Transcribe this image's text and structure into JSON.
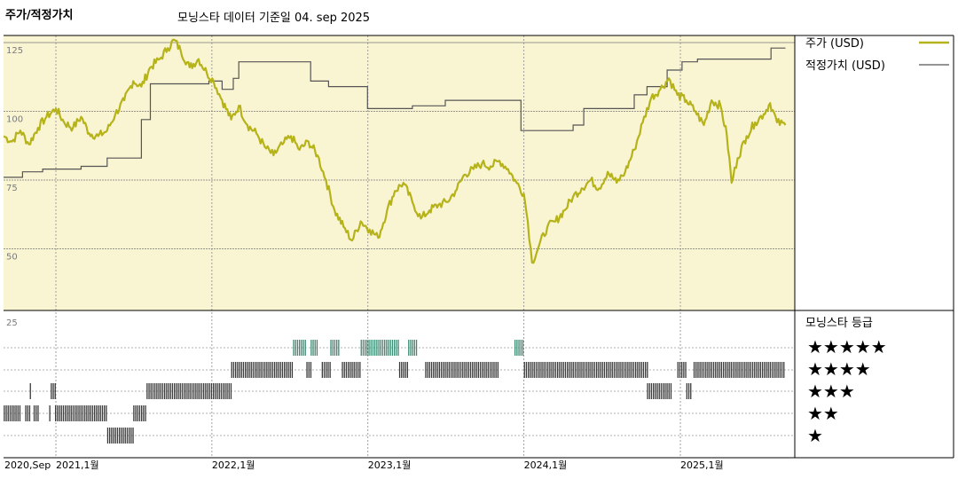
{
  "header": {
    "left_title": "주가/적정가치",
    "subtitle": "모닝스타 데이터 기준일 04. sep 2025"
  },
  "colors": {
    "price": "#b5b21a",
    "fair_value": "#555555",
    "panel_bg": "#f9f5d2",
    "rating_5": "#3d8a73",
    "rating_other": "#3a3a3a"
  },
  "chart_data": [
    {
      "type": "line",
      "title": "주가/적정가치",
      "ylim": [
        25,
        130
      ],
      "y_ticks": [
        125,
        100,
        75,
        50
      ],
      "grid": true,
      "legend_position": "right",
      "series": [
        {
          "name": "주가 (USD)",
          "points": [
            [
              "2020-09-01",
              91
            ],
            [
              "2020-09-20",
              89
            ],
            [
              "2020-10-10",
              93
            ],
            [
              "2020-10-30",
              88
            ],
            [
              "2020-11-20",
              94
            ],
            [
              "2020-12-10",
              98
            ],
            [
              "2021-01-01",
              101
            ],
            [
              "2021-01-20",
              96
            ],
            [
              "2021-02-10",
              94
            ],
            [
              "2021-03-01",
              98
            ],
            [
              "2021-03-20",
              92
            ],
            [
              "2021-04-10",
              91
            ],
            [
              "2021-05-01",
              93
            ],
            [
              "2021-05-20",
              99
            ],
            [
              "2021-06-10",
              104
            ],
            [
              "2021-07-01",
              111
            ],
            [
              "2021-07-20",
              109
            ],
            [
              "2021-08-10",
              116
            ],
            [
              "2021-09-01",
              119
            ],
            [
              "2021-09-20",
              123
            ],
            [
              "2021-10-05",
              126
            ],
            [
              "2021-10-20",
              122
            ],
            [
              "2021-11-10",
              116
            ],
            [
              "2021-12-01",
              119
            ],
            [
              "2021-12-20",
              114
            ],
            [
              "2022-01-05",
              111
            ],
            [
              "2022-01-25",
              104
            ],
            [
              "2022-02-15",
              97
            ],
            [
              "2022-03-05",
              102
            ],
            [
              "2022-03-25",
              95
            ],
            [
              "2022-04-15",
              92
            ],
            [
              "2022-05-05",
              87
            ],
            [
              "2022-05-25",
              84
            ],
            [
              "2022-06-15",
              88
            ],
            [
              "2022-07-05",
              91
            ],
            [
              "2022-07-25",
              86
            ],
            [
              "2022-08-15",
              89
            ],
            [
              "2022-09-05",
              84
            ],
            [
              "2022-09-25",
              75
            ],
            [
              "2022-10-15",
              64
            ],
            [
              "2022-11-05",
              58
            ],
            [
              "2022-11-25",
              53
            ],
            [
              "2022-12-15",
              60
            ],
            [
              "2023-01-05",
              57
            ],
            [
              "2023-01-25",
              54
            ],
            [
              "2023-02-15",
              64
            ],
            [
              "2023-03-05",
              71
            ],
            [
              "2023-03-25",
              74
            ],
            [
              "2023-04-15",
              67
            ],
            [
              "2023-05-05",
              61
            ],
            [
              "2023-05-25",
              64
            ],
            [
              "2023-06-15",
              66
            ],
            [
              "2023-07-05",
              67
            ],
            [
              "2023-07-25",
              71
            ],
            [
              "2023-08-15",
              77
            ],
            [
              "2023-09-05",
              79
            ],
            [
              "2023-09-25",
              81
            ],
            [
              "2023-10-15",
              80
            ],
            [
              "2023-11-05",
              82
            ],
            [
              "2023-11-25",
              79
            ],
            [
              "2023-12-15",
              74
            ],
            [
              "2024-01-01",
              70
            ],
            [
              "2024-01-10",
              60
            ],
            [
              "2024-01-20",
              45
            ],
            [
              "2024-02-05",
              51
            ],
            [
              "2024-02-25",
              58
            ],
            [
              "2024-03-15",
              60
            ],
            [
              "2024-04-05",
              64
            ],
            [
              "2024-04-25",
              69
            ],
            [
              "2024-05-15",
              72
            ],
            [
              "2024-06-05",
              75
            ],
            [
              "2024-06-25",
              72
            ],
            [
              "2024-07-15",
              78
            ],
            [
              "2024-08-05",
              74
            ],
            [
              "2024-08-25",
              78
            ],
            [
              "2024-09-15",
              86
            ],
            [
              "2024-10-05",
              96
            ],
            [
              "2024-10-25",
              105
            ],
            [
              "2024-11-15",
              108
            ],
            [
              "2024-12-05",
              112
            ],
            [
              "2024-12-25",
              106
            ],
            [
              "2025-01-15",
              104
            ],
            [
              "2025-02-05",
              100
            ],
            [
              "2025-02-25",
              95
            ],
            [
              "2025-03-15",
              104
            ],
            [
              "2025-04-05",
              102
            ],
            [
              "2025-04-20",
              91
            ],
            [
              "2025-05-01",
              74
            ],
            [
              "2025-05-15",
              83
            ],
            [
              "2025-06-05",
              91
            ],
            [
              "2025-06-25",
              96
            ],
            [
              "2025-07-15",
              99
            ],
            [
              "2025-07-30",
              103
            ],
            [
              "2025-08-15",
              96
            ],
            [
              "2025-09-04",
              95
            ]
          ]
        },
        {
          "name": "적정가치 (USD)",
          "points": [
            [
              "2020-09-01",
              76
            ],
            [
              "2020-10-15",
              78
            ],
            [
              "2020-12-01",
              79
            ],
            [
              "2021-03-01",
              80
            ],
            [
              "2021-05-01",
              83
            ],
            [
              "2021-07-20",
              97
            ],
            [
              "2021-08-10",
              110
            ],
            [
              "2021-12-25",
              111
            ],
            [
              "2022-01-25",
              108
            ],
            [
              "2022-02-20",
              112
            ],
            [
              "2022-03-05",
              118
            ],
            [
              "2022-08-01",
              118
            ],
            [
              "2022-08-20",
              111
            ],
            [
              "2022-10-01",
              109
            ],
            [
              "2022-12-31",
              101
            ],
            [
              "2023-04-15",
              102
            ],
            [
              "2023-07-01",
              104
            ],
            [
              "2023-12-01",
              104
            ],
            [
              "2023-12-25",
              93
            ],
            [
              "2024-04-25",
              95
            ],
            [
              "2024-05-20",
              101
            ],
            [
              "2024-09-15",
              106
            ],
            [
              "2024-10-15",
              109
            ],
            [
              "2024-12-01",
              115
            ],
            [
              "2025-01-05",
              118
            ],
            [
              "2025-02-10",
              119
            ],
            [
              "2025-08-01",
              123
            ],
            [
              "2025-09-04",
              123
            ]
          ]
        }
      ],
      "x_ticks": [
        "2020,Sep",
        "2021,1월",
        "2022,1월",
        "2023,1월",
        "2024,1월",
        "2025,1월"
      ]
    },
    {
      "type": "heatmap",
      "title": "모닝스타 등급",
      "legend": [
        "★★★★★",
        "★★★★",
        "★★★",
        "★★",
        "★"
      ],
      "row_tick": "25",
      "ratings": [
        [
          "2020-09-01",
          2
        ],
        [
          "2020-11-01",
          3
        ],
        [
          "2020-11-10",
          2
        ],
        [
          "2020-12-20",
          3
        ],
        [
          "2020-12-30",
          2
        ],
        [
          "2021-05-01",
          1
        ],
        [
          "2021-07-01",
          2
        ],
        [
          "2021-08-01",
          3
        ],
        [
          "2022-02-15",
          4
        ],
        [
          "2022-07-10",
          5
        ],
        [
          "2022-08-10",
          4
        ],
        [
          "2022-08-20",
          5
        ],
        [
          "2022-09-15",
          4
        ],
        [
          "2022-10-05",
          5
        ],
        [
          "2022-11-01",
          4
        ],
        [
          "2022-12-15",
          5
        ],
        [
          "2023-03-15",
          4
        ],
        [
          "2023-04-05",
          5
        ],
        [
          "2023-05-15",
          4
        ],
        [
          "2023-12-10",
          5
        ],
        [
          "2024-01-01",
          4
        ],
        [
          "2024-10-15",
          3
        ],
        [
          "2024-12-25",
          4
        ],
        [
          "2025-01-15",
          3
        ],
        [
          "2025-02-01",
          4
        ],
        [
          "2025-09-04",
          4
        ]
      ],
      "gaps": [
        [
          "2020-10-10",
          "2020-10-20"
        ],
        [
          "2020-11-05",
          "2020-11-10"
        ],
        [
          "2020-11-20",
          "2020-12-15"
        ],
        [
          "2022-09-05",
          "2022-09-15"
        ],
        [
          "2022-10-25",
          "2022-11-01"
        ],
        [
          "2023-04-25",
          "2023-05-15"
        ],
        [
          "2023-11-01",
          "2023-12-10"
        ],
        [
          "2024-12-10",
          "2024-12-25"
        ],
        [
          "2025-01-25",
          "2025-02-01"
        ]
      ]
    }
  ]
}
